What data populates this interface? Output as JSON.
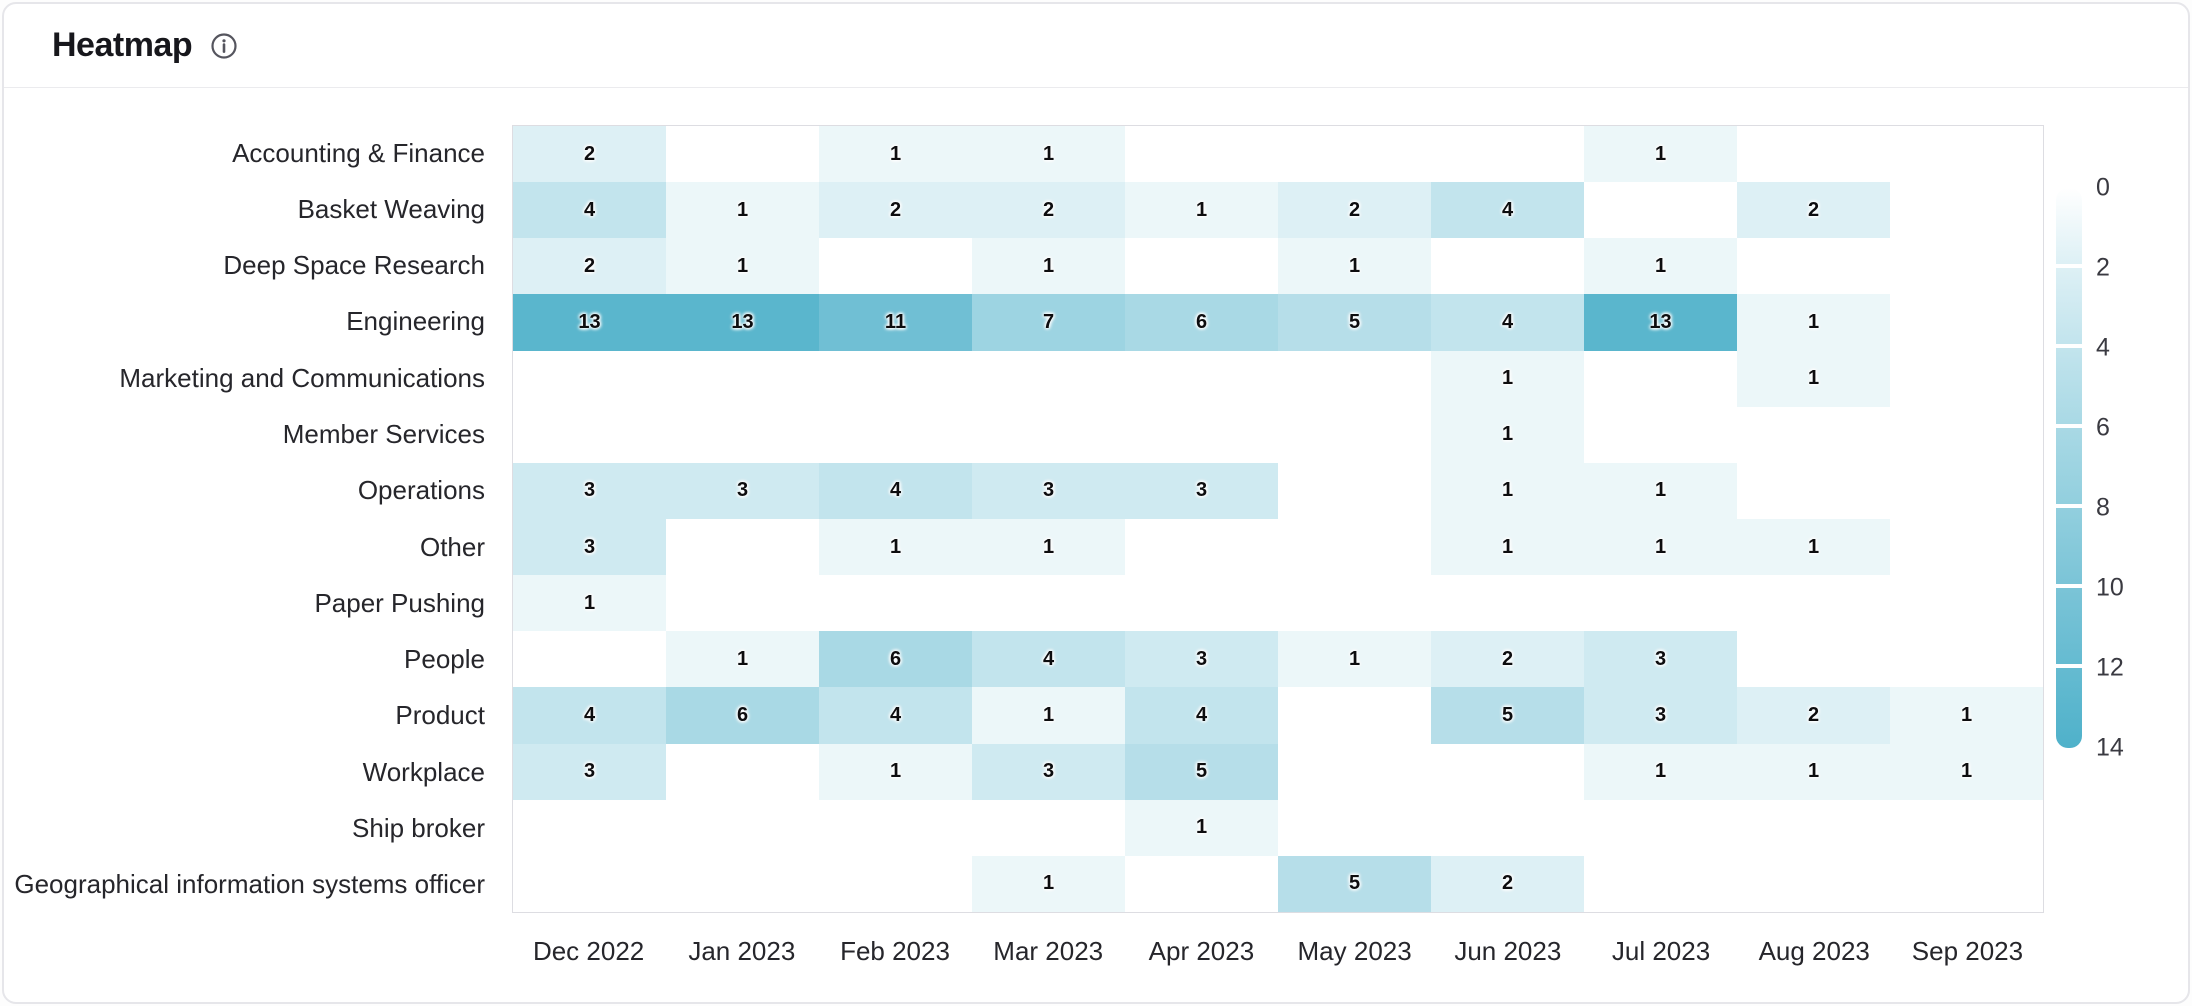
{
  "header": {
    "title": "Heatmap"
  },
  "chart_data": {
    "type": "heatmap",
    "title": "Heatmap",
    "rows": [
      "Accounting & Finance",
      "Basket Weaving",
      "Deep Space Research",
      "Engineering",
      "Marketing and Communications",
      "Member Services",
      "Operations",
      "Other",
      "Paper Pushing",
      "People",
      "Product",
      "Workplace",
      "Ship broker",
      "Geographical information systems officer"
    ],
    "columns": [
      "Dec 2022",
      "Jan 2023",
      "Feb 2023",
      "Mar 2023",
      "Apr 2023",
      "May 2023",
      "Jun 2023",
      "Jul 2023",
      "Aug 2023",
      "Sep 2023"
    ],
    "values": [
      [
        2,
        0,
        1,
        1,
        0,
        0,
        0,
        1,
        0,
        0
      ],
      [
        4,
        1,
        2,
        2,
        1,
        2,
        4,
        0,
        2,
        0
      ],
      [
        2,
        1,
        0,
        1,
        0,
        1,
        0,
        1,
        0,
        0
      ],
      [
        13,
        13,
        11,
        7,
        6,
        5,
        4,
        13,
        1,
        0
      ],
      [
        0,
        0,
        0,
        0,
        0,
        0,
        1,
        0,
        1,
        0
      ],
      [
        0,
        0,
        0,
        0,
        0,
        0,
        1,
        0,
        0,
        0
      ],
      [
        3,
        3,
        4,
        3,
        3,
        0,
        1,
        1,
        0,
        0
      ],
      [
        3,
        0,
        1,
        1,
        0,
        0,
        1,
        1,
        1,
        0
      ],
      [
        1,
        0,
        0,
        0,
        0,
        0,
        0,
        0,
        0,
        0
      ],
      [
        0,
        1,
        6,
        4,
        3,
        1,
        2,
        3,
        0,
        0
      ],
      [
        4,
        6,
        4,
        1,
        4,
        0,
        5,
        3,
        2,
        1
      ],
      [
        3,
        0,
        1,
        3,
        5,
        0,
        0,
        1,
        1,
        1
      ],
      [
        0,
        0,
        0,
        0,
        1,
        0,
        0,
        0,
        0,
        0
      ],
      [
        0,
        0,
        0,
        1,
        0,
        5,
        2,
        0,
        0,
        0
      ]
    ],
    "value_range": [
      0,
      14
    ],
    "legend_ticks": [
      0,
      2,
      4,
      6,
      8,
      10,
      12,
      14
    ],
    "legend_position": "right",
    "colors": {
      "min": "#ffffff",
      "max": "#4fb1ca",
      "gamma": 0.85,
      "empty": "#ffffff"
    }
  }
}
